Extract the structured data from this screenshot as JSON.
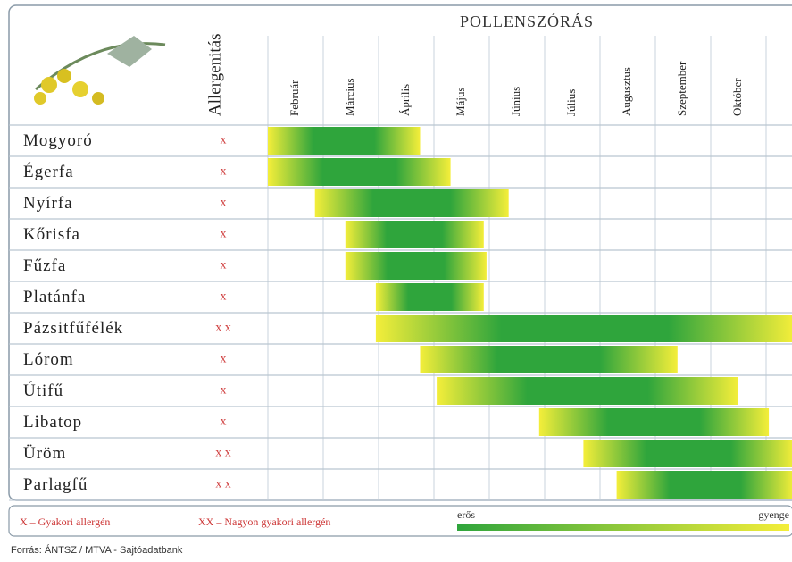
{
  "chart_data": {
    "type": "gantt",
    "title": "POLLENSZÓRÁS",
    "allergen_header": "Allergenitás",
    "months": [
      "Február",
      "Március",
      "Április",
      "Május",
      "Június",
      "Július",
      "Augusztus",
      "Szeptember",
      "Október"
    ],
    "categories": [
      "Mogyoró",
      "Égerfa",
      "Nyírfa",
      "Kőrisfa",
      "Fűzfa",
      "Platánfa",
      "Pázsitfűfélék",
      "Lórom",
      "Útifű",
      "Libatop",
      "Üröm",
      "Parlagfű"
    ],
    "allergen": [
      "x",
      "x",
      "x",
      "x",
      "x",
      "x",
      "x x",
      "x",
      "x",
      "x",
      "x x",
      "x x"
    ],
    "start": [
      0,
      0,
      0.85,
      1.4,
      1.4,
      1.95,
      1.95,
      2.75,
      3.05,
      4.9,
      5.7,
      6.3
    ],
    "end": [
      2.75,
      3.3,
      4.35,
      3.9,
      3.95,
      3.9,
      9.5,
      7.4,
      8.5,
      9.05,
      9.5,
      9.5
    ],
    "xlim": [
      0,
      9.5
    ],
    "colors": {
      "strong": "#2fa53c",
      "weak": "#f4ee3a"
    },
    "legend": {
      "frequent": "X – Gyakori allergén",
      "very_frequent": "XX – Nagyon gyakori allergén",
      "strong": "erős",
      "weak": "gyenge"
    },
    "source": "Forrás: ÁNTSZ / MTVA - Sajtóadatbank"
  }
}
